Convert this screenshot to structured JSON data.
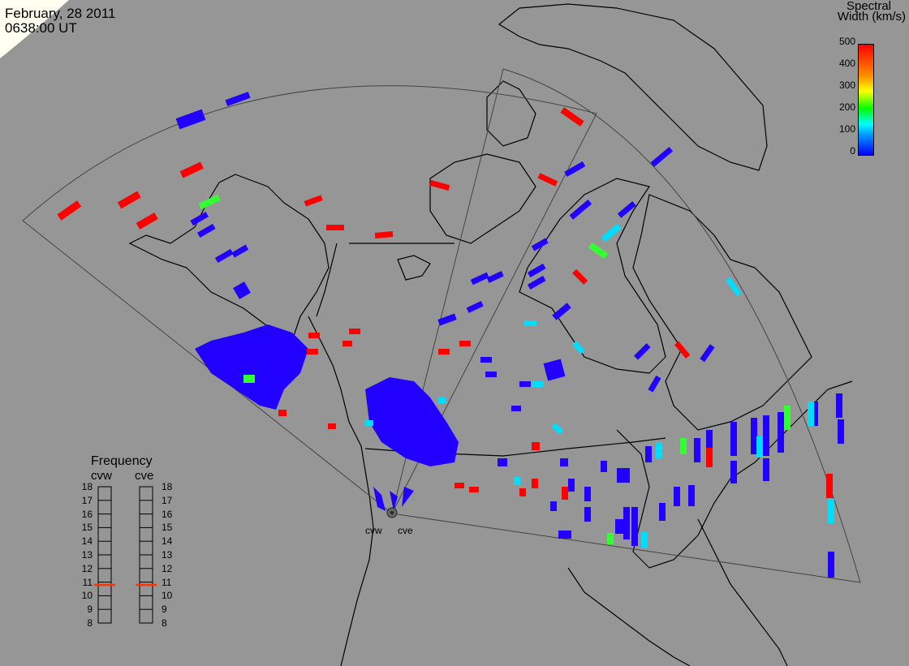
{
  "header": {
    "date": "February, 28 2011",
    "time": "0638:00 UT"
  },
  "colorbar": {
    "title_line1": "Spectral",
    "title_line2": "Width (km/s)",
    "ticks": [
      "500",
      "400",
      "300",
      "200",
      "100",
      "0"
    ],
    "colors": [
      "#0000ff",
      "#00ffff",
      "#00ff00",
      "#ffff00",
      "#ff0000"
    ]
  },
  "frequency": {
    "title": "Frequency",
    "radars": [
      "cvw",
      "cve"
    ],
    "scale": [
      "18",
      "17",
      "16",
      "15",
      "14",
      "13",
      "12",
      "11",
      "10",
      "9",
      "8"
    ],
    "cvw_value": 10.8,
    "cve_value": 10.8,
    "marker_color": "#ff3300"
  },
  "sites": {
    "cvw": "cvw",
    "cve": "cve"
  },
  "colors": {
    "background": "#969696",
    "coast": "#000000",
    "scatter_low": "#2200ff",
    "scatter_high": "#ff0000",
    "scatter_mid": "#00e5ff",
    "scatter_green": "#33ff33"
  }
}
